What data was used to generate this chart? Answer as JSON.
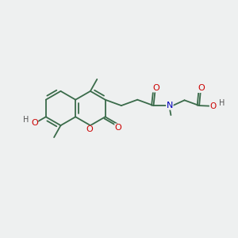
{
  "bg_color": "#eef0f0",
  "bond_color": "#3a6b4a",
  "bond_width": 1.3,
  "atom_colors": {
    "O": "#cc0000",
    "N": "#0000bb",
    "H": "#555555"
  },
  "font_size": 8.0
}
